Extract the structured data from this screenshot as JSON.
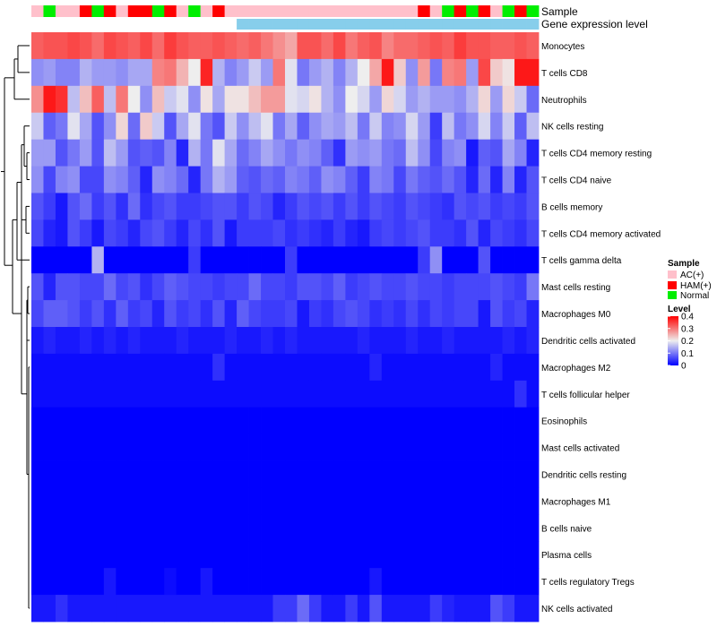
{
  "chart_data": {
    "type": "heatmap",
    "title": "",
    "annotation_tracks": [
      "Sample",
      "Gene expression level"
    ],
    "rows": [
      "Monocytes",
      "T cells CD8",
      "Neutrophils",
      "NK cells resting",
      "T cells CD4 memory resting",
      "T cells CD4 naive",
      "B cells memory",
      "T cells CD4 memory activated",
      "T cells gamma delta",
      "Mast cells resting",
      "Macrophages M0",
      "Dendritic cells activated",
      "Macrophages M2",
      "T cells follicular helper",
      "Eosinophils",
      "Mast cells activated",
      "Dendritic cells resting",
      "Macrophages M1",
      "B cells naive",
      "Plasma cells",
      "T cells regulatory  Tregs",
      "NK cells activated"
    ],
    "sample_groups": [
      "AC(+)",
      "Normal",
      "AC(+)",
      "AC(+)",
      "HAM(+)",
      "Normal",
      "HAM(+)",
      "AC(+)",
      "HAM(+)",
      "HAM(+)",
      "Normal",
      "HAM(+)",
      "AC(+)",
      "Normal",
      "AC(+)",
      "HAM(+)",
      "AC(+)",
      "AC(+)",
      "AC(+)",
      "AC(+)",
      "AC(+)",
      "AC(+)",
      "AC(+)",
      "AC(+)",
      "AC(+)",
      "AC(+)",
      "AC(+)",
      "AC(+)",
      "AC(+)",
      "AC(+)",
      "AC(+)",
      "AC(+)",
      "HAM(+)",
      "AC(+)",
      "Normal",
      "HAM(+)",
      "Normal",
      "HAM(+)",
      "AC(+)",
      "Normal",
      "HAM(+)",
      "Normal"
    ],
    "expression_level_groups": [
      "low",
      "low",
      "low",
      "low",
      "low",
      "low",
      "low",
      "low",
      "low",
      "low",
      "low",
      "low",
      "low",
      "low",
      "low",
      "low",
      "low",
      "high",
      "high",
      "high",
      "high",
      "high",
      "high",
      "high",
      "high",
      "high",
      "high",
      "high",
      "high",
      "high",
      "high",
      "high",
      "high",
      "high",
      "high",
      "high",
      "high",
      "high",
      "high",
      "high",
      "high",
      "high"
    ],
    "values": [
      [
        0.32,
        0.33,
        0.33,
        0.34,
        0.33,
        0.31,
        0.34,
        0.33,
        0.32,
        0.34,
        0.31,
        0.35,
        0.33,
        0.32,
        0.32,
        0.33,
        0.32,
        0.31,
        0.32,
        0.3,
        0.28,
        0.26,
        0.33,
        0.33,
        0.31,
        0.34,
        0.3,
        0.32,
        0.33,
        0.29,
        0.31,
        0.31,
        0.32,
        0.33,
        0.32,
        0.35,
        0.33,
        0.33,
        0.32,
        0.32,
        0.33,
        0.32
      ],
      [
        0.12,
        0.13,
        0.11,
        0.11,
        0.15,
        0.13,
        0.13,
        0.12,
        0.14,
        0.14,
        0.29,
        0.3,
        0.25,
        0.2,
        0.37,
        0.15,
        0.11,
        0.13,
        0.17,
        0.13,
        0.3,
        0.19,
        0.1,
        0.13,
        0.15,
        0.11,
        0.15,
        0.2,
        0.26,
        0.38,
        0.23,
        0.12,
        0.27,
        0.1,
        0.29,
        0.3,
        0.13,
        0.34,
        0.23,
        0.21,
        0.38,
        0.38
      ],
      [
        0.28,
        0.38,
        0.36,
        0.16,
        0.24,
        0.32,
        0.16,
        0.3,
        0.2,
        0.12,
        0.24,
        0.17,
        0.19,
        0.12,
        0.21,
        0.14,
        0.21,
        0.21,
        0.24,
        0.27,
        0.27,
        0.19,
        0.18,
        0.21,
        0.15,
        0.12,
        0.2,
        0.18,
        0.13,
        0.22,
        0.18,
        0.13,
        0.15,
        0.13,
        0.13,
        0.12,
        0.15,
        0.22,
        0.13,
        0.22,
        0.17,
        0.09
      ],
      [
        0.17,
        0.08,
        0.1,
        0.19,
        0.14,
        0.07,
        0.12,
        0.22,
        0.09,
        0.23,
        0.17,
        0.07,
        0.14,
        0.19,
        0.1,
        0.07,
        0.17,
        0.12,
        0.16,
        0.19,
        0.1,
        0.14,
        0.08,
        0.12,
        0.14,
        0.13,
        0.16,
        0.1,
        0.17,
        0.11,
        0.12,
        0.18,
        0.13,
        0.05,
        0.16,
        0.1,
        0.12,
        0.18,
        0.11,
        0.17,
        0.08,
        0.16
      ],
      [
        0.13,
        0.13,
        0.07,
        0.1,
        0.13,
        0.07,
        0.16,
        0.13,
        0.07,
        0.08,
        0.07,
        0.11,
        0.03,
        0.15,
        0.1,
        0.19,
        0.14,
        0.09,
        0.11,
        0.14,
        0.12,
        0.1,
        0.12,
        0.11,
        0.08,
        0.04,
        0.13,
        0.12,
        0.13,
        0.1,
        0.09,
        0.16,
        0.12,
        0.06,
        0.11,
        0.12,
        0.02,
        0.08,
        0.07,
        0.14,
        0.11,
        0.03
      ],
      [
        0.12,
        0.06,
        0.11,
        0.12,
        0.06,
        0.06,
        0.12,
        0.11,
        0.08,
        0.03,
        0.12,
        0.11,
        0.09,
        0.03,
        0.1,
        0.15,
        0.13,
        0.08,
        0.07,
        0.09,
        0.08,
        0.11,
        0.1,
        0.08,
        0.12,
        0.11,
        0.08,
        0.05,
        0.11,
        0.1,
        0.06,
        0.1,
        0.08,
        0.07,
        0.09,
        0.07,
        0.03,
        0.09,
        0.03,
        0.11,
        0.03,
        0.07
      ],
      [
        0.07,
        0.05,
        0.02,
        0.07,
        0.09,
        0.05,
        0.07,
        0.04,
        0.09,
        0.04,
        0.06,
        0.07,
        0.05,
        0.05,
        0.06,
        0.07,
        0.07,
        0.05,
        0.07,
        0.06,
        0.03,
        0.05,
        0.07,
        0.06,
        0.07,
        0.05,
        0.07,
        0.05,
        0.07,
        0.06,
        0.05,
        0.07,
        0.06,
        0.05,
        0.04,
        0.07,
        0.06,
        0.07,
        0.05,
        0.06,
        0.05,
        0.07
      ],
      [
        0.06,
        0.03,
        0.02,
        0.07,
        0.05,
        0.02,
        0.06,
        0.05,
        0.03,
        0.06,
        0.07,
        0.05,
        0.03,
        0.06,
        0.04,
        0.07,
        0.02,
        0.05,
        0.05,
        0.05,
        0.06,
        0.04,
        0.05,
        0.04,
        0.03,
        0.05,
        0.03,
        0.02,
        0.05,
        0.06,
        0.05,
        0.06,
        0.07,
        0.05,
        0.05,
        0.04,
        0.07,
        0.03,
        0.06,
        0.05,
        0.04,
        0.06
      ],
      [
        0,
        0,
        0,
        0,
        0,
        0.15,
        0,
        0,
        0,
        0,
        0,
        0,
        0,
        0.05,
        0,
        0,
        0,
        0,
        0,
        0,
        0,
        0.05,
        0,
        0,
        0,
        0,
        0,
        0,
        0,
        0,
        0,
        0,
        0.05,
        0.12,
        0,
        0,
        0,
        0.07,
        0,
        0,
        0,
        0
      ],
      [
        0.07,
        0.03,
        0.07,
        0.07,
        0.06,
        0.06,
        0.09,
        0.06,
        0.07,
        0.04,
        0.06,
        0.08,
        0.07,
        0.06,
        0.06,
        0.05,
        0.06,
        0.06,
        0.09,
        0.06,
        0.06,
        0.05,
        0.07,
        0.07,
        0.06,
        0.08,
        0.05,
        0.06,
        0.07,
        0.06,
        0.06,
        0.07,
        0.06,
        0.06,
        0.05,
        0.06,
        0.06,
        0.06,
        0.07,
        0.06,
        0.05,
        0.1
      ],
      [
        0.06,
        0.08,
        0.08,
        0.07,
        0.05,
        0.07,
        0.04,
        0.08,
        0.05,
        0.06,
        0.03,
        0.07,
        0.05,
        0.06,
        0.04,
        0.07,
        0.03,
        0.08,
        0.06,
        0.05,
        0.05,
        0.06,
        0.02,
        0.05,
        0.04,
        0.06,
        0.07,
        0.06,
        0.04,
        0.05,
        0.04,
        0.06,
        0.04,
        0.06,
        0.05,
        0.06,
        0.06,
        0.02,
        0.07,
        0.05,
        0.06,
        0.03
      ],
      [
        0.02,
        0.03,
        0.02,
        0.02,
        0.03,
        0.02,
        0.03,
        0.02,
        0.03,
        0.02,
        0.02,
        0.02,
        0.03,
        0.02,
        0.02,
        0.02,
        0.03,
        0.02,
        0.02,
        0.03,
        0.02,
        0.03,
        0.02,
        0.02,
        0.02,
        0.02,
        0.02,
        0.03,
        0.02,
        0.02,
        0.02,
        0.03,
        0.02,
        0.02,
        0.03,
        0.02,
        0.02,
        0.02,
        0.02,
        0.03,
        0.02,
        0.03
      ],
      [
        0.01,
        0.01,
        0.01,
        0.01,
        0.01,
        0.01,
        0.01,
        0.01,
        0.01,
        0.01,
        0.01,
        0.01,
        0.01,
        0.01,
        0.01,
        0.04,
        0.01,
        0.01,
        0.01,
        0.01,
        0.01,
        0.01,
        0.01,
        0.01,
        0.01,
        0.01,
        0.01,
        0.01,
        0.03,
        0.01,
        0.01,
        0.01,
        0.01,
        0.01,
        0.01,
        0.01,
        0.01,
        0.01,
        0.03,
        0.01,
        0.01,
        0.01
      ],
      [
        0.01,
        0.01,
        0.01,
        0.01,
        0.01,
        0.01,
        0.01,
        0.01,
        0.01,
        0.01,
        0.01,
        0.01,
        0.01,
        0.01,
        0.01,
        0.01,
        0.01,
        0.01,
        0.01,
        0.01,
        0.01,
        0.01,
        0.01,
        0.01,
        0.01,
        0.01,
        0.01,
        0.01,
        0.01,
        0.01,
        0.01,
        0.01,
        0.01,
        0.01,
        0.01,
        0.01,
        0.01,
        0.01,
        0.01,
        0.01,
        0.04,
        0.01
      ],
      [
        0,
        0,
        0,
        0,
        0,
        0,
        0,
        0,
        0,
        0,
        0,
        0,
        0,
        0,
        0,
        0,
        0,
        0,
        0,
        0,
        0,
        0,
        0,
        0,
        0,
        0,
        0,
        0,
        0,
        0,
        0,
        0,
        0,
        0,
        0,
        0,
        0,
        0,
        0,
        0,
        0,
        0
      ],
      [
        0,
        0,
        0,
        0,
        0,
        0,
        0,
        0,
        0,
        0,
        0,
        0,
        0,
        0,
        0,
        0,
        0,
        0,
        0,
        0,
        0,
        0,
        0,
        0,
        0,
        0,
        0,
        0,
        0,
        0,
        0,
        0,
        0,
        0,
        0,
        0,
        0,
        0,
        0,
        0,
        0,
        0
      ],
      [
        0,
        0,
        0,
        0,
        0,
        0,
        0,
        0,
        0,
        0,
        0,
        0,
        0,
        0,
        0,
        0,
        0,
        0,
        0,
        0,
        0,
        0,
        0,
        0,
        0,
        0,
        0,
        0,
        0,
        0,
        0,
        0,
        0,
        0,
        0,
        0,
        0,
        0,
        0,
        0,
        0,
        0
      ],
      [
        0,
        0,
        0,
        0,
        0,
        0,
        0,
        0,
        0,
        0,
        0,
        0,
        0,
        0,
        0,
        0,
        0,
        0,
        0,
        0,
        0,
        0,
        0,
        0,
        0,
        0,
        0,
        0,
        0,
        0,
        0,
        0,
        0,
        0,
        0,
        0,
        0,
        0,
        0,
        0,
        0,
        0
      ],
      [
        0,
        0,
        0,
        0,
        0,
        0,
        0,
        0,
        0,
        0,
        0,
        0,
        0,
        0,
        0,
        0,
        0,
        0,
        0,
        0,
        0,
        0,
        0,
        0,
        0,
        0,
        0,
        0,
        0,
        0,
        0,
        0,
        0,
        0,
        0,
        0,
        0,
        0,
        0,
        0,
        0,
        0
      ],
      [
        0,
        0,
        0,
        0,
        0,
        0,
        0,
        0,
        0,
        0,
        0,
        0,
        0,
        0,
        0,
        0,
        0,
        0,
        0,
        0,
        0,
        0,
        0,
        0,
        0,
        0,
        0,
        0,
        0,
        0,
        0,
        0,
        0,
        0,
        0,
        0,
        0,
        0,
        0,
        0,
        0,
        0
      ],
      [
        0,
        0,
        0,
        0,
        0,
        0,
        0.02,
        0,
        0,
        0,
        0,
        0.01,
        0,
        0,
        0.02,
        0,
        0,
        0,
        0,
        0,
        0,
        0,
        0,
        0,
        0,
        0,
        0,
        0,
        0.02,
        0,
        0,
        0,
        0,
        0,
        0,
        0,
        0,
        0,
        0,
        0,
        0,
        0
      ],
      [
        0.02,
        0.02,
        0.04,
        0.02,
        0.02,
        0.02,
        0.02,
        0.02,
        0.02,
        0.02,
        0.02,
        0.02,
        0.02,
        0.02,
        0.02,
        0.02,
        0.02,
        0.02,
        0.02,
        0.02,
        0.05,
        0.05,
        0.09,
        0.05,
        0.02,
        0.02,
        0.05,
        0.02,
        0.07,
        0.02,
        0.02,
        0.02,
        0.02,
        0.05,
        0.03,
        0.02,
        0.02,
        0.02,
        0.07,
        0.05,
        0.02,
        0.02
      ]
    ],
    "color_scale": {
      "low": "#0000ff",
      "mid": "#eeeeee",
      "high": "#ff0000",
      "min": 0,
      "mid_value": 0.2,
      "max": 0.4
    },
    "legend": {
      "sample_title": "Sample",
      "sample_entries": [
        {
          "label": "AC(+)",
          "color": "#ffc0cb"
        },
        {
          "label": "HAM(+)",
          "color": "#ff0000"
        },
        {
          "label": "Normal",
          "color": "#00ee00"
        }
      ],
      "expression_colors": {
        "low": "#ffffff",
        "high": "#87ceeb"
      },
      "level_title": "Level",
      "level_ticks": [
        "0.4",
        "0.3",
        "0.2",
        "0.1",
        "0"
      ],
      "placement": "right"
    }
  }
}
